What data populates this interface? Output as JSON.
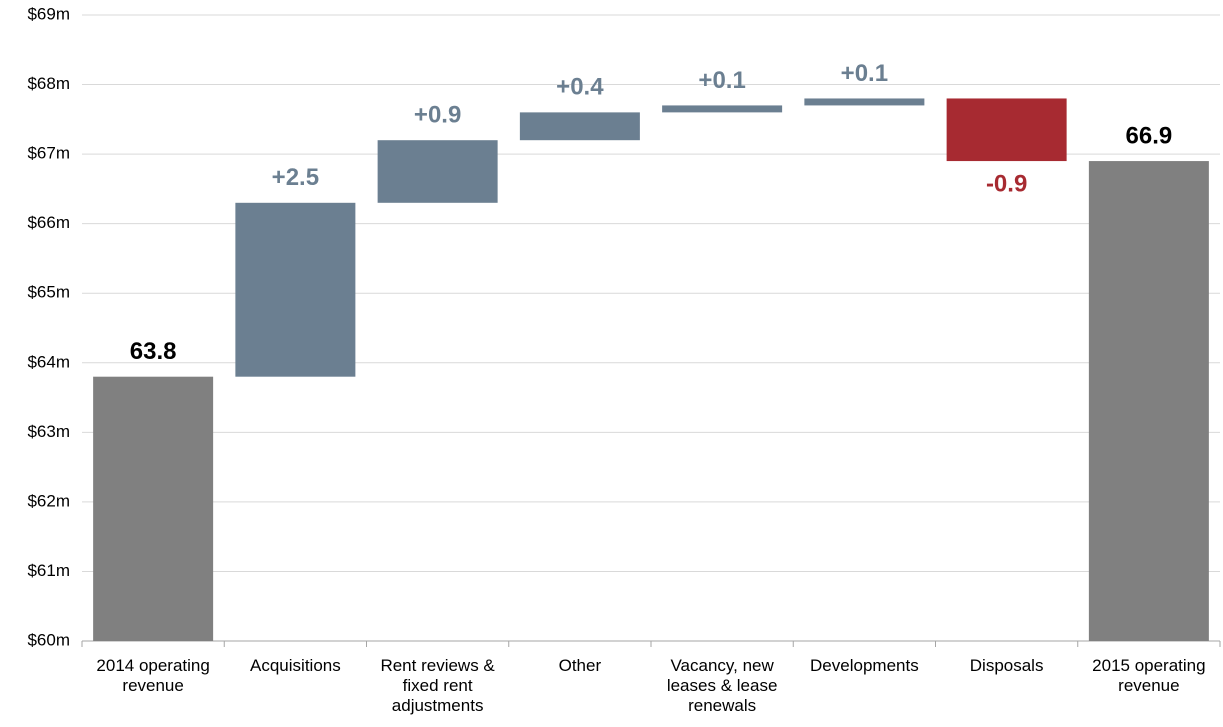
{
  "chart_data": {
    "type": "waterfall",
    "categories": [
      "2014 operating revenue",
      "Acquisitions",
      "Rent reviews & fixed rent adjustments",
      "Other",
      "Vacancy, new leases & lease renewals",
      "Developments",
      "Disposals",
      "2015 operating revenue"
    ],
    "values": [
      63.8,
      2.5,
      0.9,
      0.4,
      0.1,
      0.1,
      -0.9,
      66.9
    ],
    "value_labels": [
      "63.8",
      "+2.5",
      "+0.9",
      "+0.4",
      "+0.1",
      "+0.1",
      "-0.9",
      "66.9"
    ],
    "measures": [
      "absolute",
      "relative",
      "relative",
      "relative",
      "relative",
      "relative",
      "relative",
      "absolute"
    ],
    "colors": [
      "#808080",
      "#6b7f91",
      "#6b7f91",
      "#6b7f91",
      "#6b7f91",
      "#6b7f91",
      "#a72a31",
      "#808080"
    ],
    "ylim": [
      60,
      69
    ],
    "yticks": [
      {
        "value": 60,
        "label": "$60m"
      },
      {
        "value": 61,
        "label": "$61m"
      },
      {
        "value": 62,
        "label": "$62m"
      },
      {
        "value": 63,
        "label": "$63m"
      },
      {
        "value": 64,
        "label": "$64m"
      },
      {
        "value": 65,
        "label": "$65m"
      },
      {
        "value": 66,
        "label": "$66m"
      },
      {
        "value": 67,
        "label": "$67m"
      },
      {
        "value": 68,
        "label": "$68m"
      },
      {
        "value": 69,
        "label": "$69m"
      }
    ],
    "grid": true
  }
}
